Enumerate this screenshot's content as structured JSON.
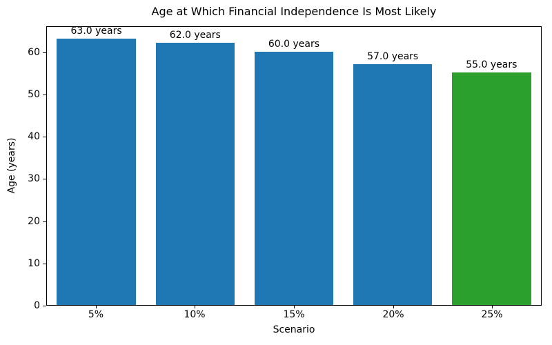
{
  "chart_data": {
    "type": "bar",
    "title": "Age at Which Financial Independence Is Most Likely",
    "xlabel": "Scenario",
    "ylabel": "Age (years)",
    "categories": [
      "5%",
      "10%",
      "15%",
      "20%",
      "25%"
    ],
    "values": [
      63.0,
      62.0,
      60.0,
      57.0,
      55.0
    ],
    "bar_labels": [
      "63.0 years",
      "62.0 years",
      "60.0 years",
      "57.0 years",
      "55.0 years"
    ],
    "bar_colors": [
      "#1f77b4",
      "#1f77b4",
      "#1f77b4",
      "#1f77b4",
      "#2ca02c"
    ],
    "ylim": [
      0,
      66.15
    ],
    "yticks": [
      0,
      10,
      20,
      30,
      40,
      50,
      60
    ],
    "grid": false,
    "legend_position": "none",
    "spine_color": "#000000",
    "background_color": "#ffffff"
  }
}
